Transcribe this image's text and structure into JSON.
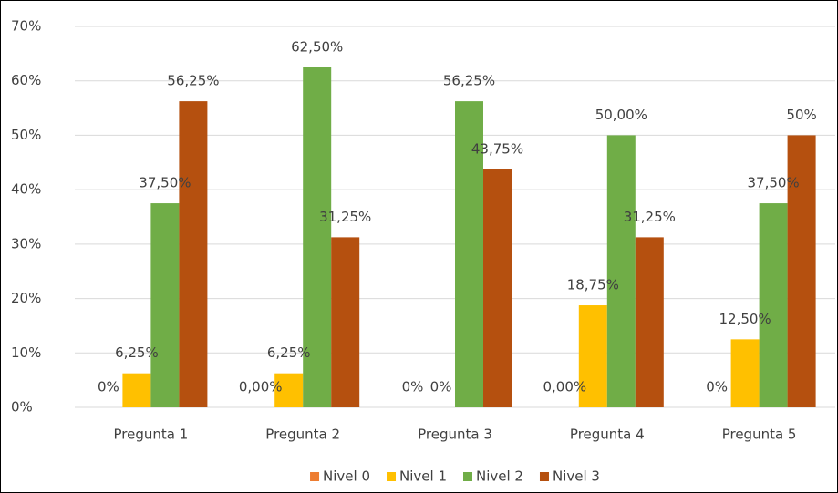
{
  "chart_data": {
    "type": "bar",
    "categories": [
      "Pregunta 1",
      "Pregunta 2",
      "Pregunta 3",
      "Pregunta 4",
      "Pregunta 5"
    ],
    "series": [
      {
        "name": "Nivel 0",
        "color": "#ed7d31",
        "values": [
          0,
          0,
          0,
          0,
          0
        ],
        "value_labels": [
          "0%",
          "0,00%",
          "0%",
          "0,00%",
          "0%"
        ]
      },
      {
        "name": "Nivel 1",
        "color": "#ffc000",
        "values": [
          6.25,
          6.25,
          0,
          18.75,
          12.5
        ],
        "value_labels": [
          "6,25%",
          "6,25%",
          "0%",
          "18,75%",
          "12,50%"
        ]
      },
      {
        "name": "Nivel 2",
        "color": "#70ad47",
        "values": [
          37.5,
          62.5,
          56.25,
          50,
          37.5
        ],
        "value_labels": [
          "37,50%",
          "62,50%",
          "56,25%",
          "50,00%",
          "37,50%"
        ]
      },
      {
        "name": "Nivel 3",
        "color": "#b5500f",
        "values": [
          56.25,
          31.25,
          43.75,
          31.25,
          50
        ],
        "value_labels": [
          "56,25%",
          "31,25%",
          "43,75%",
          "31,25%",
          "50%"
        ]
      }
    ],
    "ylim": [
      0,
      70
    ],
    "yticks": [
      {
        "value": 0,
        "label": "0%"
      },
      {
        "value": 10,
        "label": "10%"
      },
      {
        "value": 20,
        "label": "20%"
      },
      {
        "value": 30,
        "label": "30%"
      },
      {
        "value": 40,
        "label": "40%"
      },
      {
        "value": 50,
        "label": "50%"
      },
      {
        "value": 60,
        "label": "60%"
      },
      {
        "value": 70,
        "label": "70%"
      }
    ],
    "grid": true,
    "legend": "bottom"
  }
}
